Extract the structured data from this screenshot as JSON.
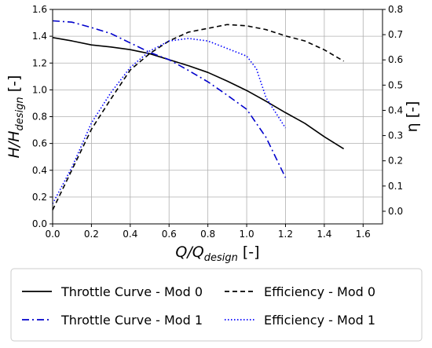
{
  "chart_data": {
    "type": "line",
    "xlabel": "Q/Q",
    "xlabel_sub": "design",
    "xlabel_unit": " [-]",
    "ylabel_left": "H/H",
    "ylabel_left_sub": "design",
    "ylabel_left_unit": " [-]",
    "ylabel_right": "η [-]",
    "xlim": [
      0,
      1.7
    ],
    "ylim_left": [
      0,
      1.6
    ],
    "ylim_right": [
      -0.05,
      0.8
    ],
    "x_ticks": [
      "0.0",
      "0.2",
      "0.4",
      "0.6",
      "0.8",
      "1.0",
      "1.2",
      "1.4",
      "1.6"
    ],
    "y_left_ticks": [
      "0.0",
      "0.2",
      "0.4",
      "0.6",
      "0.8",
      "1.0",
      "1.2",
      "1.4",
      "1.6"
    ],
    "y_right_ticks": [
      "0.0",
      "0.1",
      "0.2",
      "0.3",
      "0.4",
      "0.5",
      "0.6",
      "0.7",
      "0.8"
    ],
    "grid": true,
    "legend_placement": "bottom",
    "series": [
      {
        "name": "Throttle Curve - Mod 0",
        "axis": "left",
        "color": "#000000",
        "dash": "solid",
        "x": [
          0.0,
          0.1,
          0.2,
          0.3,
          0.4,
          0.5,
          0.6,
          0.7,
          0.8,
          0.9,
          1.0,
          1.1,
          1.2,
          1.3,
          1.4,
          1.5
        ],
        "y": [
          1.39,
          1.365,
          1.335,
          1.32,
          1.3,
          1.27,
          1.225,
          1.18,
          1.13,
          1.065,
          0.995,
          0.915,
          0.83,
          0.75,
          0.65,
          0.56
        ]
      },
      {
        "name": "Throttle Curve - Mod 1",
        "axis": "left",
        "color": "#0000cc",
        "dash": "dashdot",
        "x": [
          0.0,
          0.1,
          0.2,
          0.3,
          0.4,
          0.5,
          0.6,
          0.7,
          0.8,
          0.9,
          1.0,
          1.1,
          1.2
        ],
        "y": [
          1.515,
          1.505,
          1.465,
          1.42,
          1.35,
          1.28,
          1.225,
          1.145,
          1.06,
          0.96,
          0.855,
          0.645,
          0.345
        ]
      },
      {
        "name": "Efficiency - Mod 0",
        "axis": "right",
        "color": "#000000",
        "dash": "dashed",
        "x": [
          0.0,
          0.1,
          0.2,
          0.3,
          0.4,
          0.5,
          0.6,
          0.7,
          0.8,
          0.9,
          1.0,
          1.1,
          1.2,
          1.3,
          1.4,
          1.5
        ],
        "y": [
          0.005,
          0.165,
          0.325,
          0.445,
          0.56,
          0.625,
          0.675,
          0.71,
          0.725,
          0.74,
          0.735,
          0.72,
          0.695,
          0.675,
          0.64,
          0.595
        ]
      },
      {
        "name": "Efficiency - Mod 1",
        "axis": "right",
        "color": "#0000ff",
        "dash": "dotted",
        "x": [
          0.0,
          0.1,
          0.2,
          0.3,
          0.4,
          0.5,
          0.6,
          0.7,
          0.8,
          0.9,
          1.0,
          1.05,
          1.1,
          1.2
        ],
        "y": [
          0.03,
          0.175,
          0.35,
          0.47,
          0.57,
          0.635,
          0.675,
          0.685,
          0.675,
          0.645,
          0.615,
          0.565,
          0.45,
          0.33
        ]
      }
    ]
  }
}
